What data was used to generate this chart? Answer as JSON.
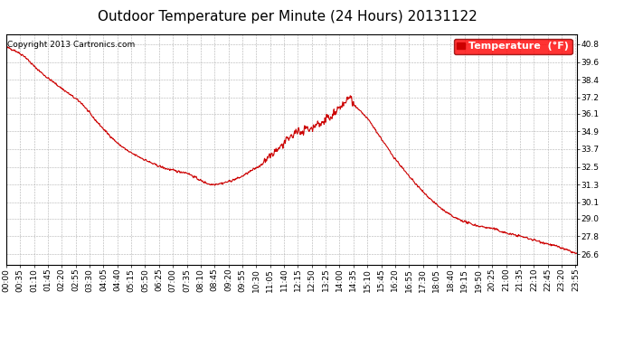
{
  "title": "Outdoor Temperature per Minute (24 Hours) 20131122",
  "copyright_text": "Copyright 2013 Cartronics.com",
  "legend_label": "Temperature  (°F)",
  "line_color": "#cc0000",
  "background_color": "#ffffff",
  "plot_bg_color": "#ffffff",
  "grid_color": "#b0b0b0",
  "ylim": [
    25.9,
    41.5
  ],
  "yticks": [
    26.6,
    27.8,
    29.0,
    30.1,
    31.3,
    32.5,
    33.7,
    34.9,
    36.1,
    37.2,
    38.4,
    39.6,
    40.8
  ],
  "title_fontsize": 11,
  "tick_fontsize": 6.5,
  "legend_fontsize": 8,
  "copyright_fontsize": 6.5,
  "line_width": 0.8,
  "control_points": [
    [
      0,
      40.6
    ],
    [
      20,
      40.4
    ],
    [
      45,
      40.0
    ],
    [
      70,
      39.3
    ],
    [
      100,
      38.6
    ],
    [
      130,
      38.0
    ],
    [
      160,
      37.4
    ],
    [
      190,
      36.8
    ],
    [
      220,
      35.8
    ],
    [
      250,
      34.9
    ],
    [
      280,
      34.1
    ],
    [
      310,
      33.5
    ],
    [
      340,
      33.1
    ],
    [
      370,
      32.7
    ],
    [
      400,
      32.4
    ],
    [
      430,
      32.2
    ],
    [
      455,
      32.1
    ],
    [
      475,
      31.8
    ],
    [
      495,
      31.5
    ],
    [
      510,
      31.35
    ],
    [
      515,
      31.3
    ],
    [
      530,
      31.35
    ],
    [
      545,
      31.4
    ],
    [
      565,
      31.55
    ],
    [
      590,
      31.8
    ],
    [
      615,
      32.2
    ],
    [
      640,
      32.6
    ],
    [
      660,
      33.1
    ],
    [
      680,
      33.6
    ],
    [
      700,
      34.1
    ],
    [
      715,
      34.5
    ],
    [
      730,
      34.85
    ],
    [
      745,
      34.9
    ],
    [
      755,
      35.2
    ],
    [
      763,
      34.95
    ],
    [
      770,
      35.1
    ],
    [
      778,
      35.3
    ],
    [
      785,
      35.55
    ],
    [
      790,
      35.3
    ],
    [
      796,
      35.5
    ],
    [
      803,
      35.75
    ],
    [
      810,
      35.95
    ],
    [
      817,
      35.7
    ],
    [
      823,
      36.0
    ],
    [
      830,
      36.2
    ],
    [
      838,
      36.45
    ],
    [
      845,
      36.6
    ],
    [
      852,
      36.8
    ],
    [
      858,
      36.9
    ],
    [
      863,
      37.15
    ],
    [
      867,
      37.2
    ],
    [
      871,
      36.95
    ],
    [
      878,
      36.6
    ],
    [
      888,
      36.35
    ],
    [
      900,
      36.05
    ],
    [
      915,
      35.6
    ],
    [
      930,
      35.0
    ],
    [
      950,
      34.2
    ],
    [
      970,
      33.4
    ],
    [
      990,
      32.7
    ],
    [
      1010,
      32.0
    ],
    [
      1030,
      31.4
    ],
    [
      1050,
      30.8
    ],
    [
      1070,
      30.3
    ],
    [
      1090,
      29.8
    ],
    [
      1110,
      29.4
    ],
    [
      1130,
      29.05
    ],
    [
      1150,
      28.85
    ],
    [
      1170,
      28.65
    ],
    [
      1190,
      28.5
    ],
    [
      1210,
      28.4
    ],
    [
      1230,
      28.3
    ],
    [
      1250,
      28.1
    ],
    [
      1270,
      27.95
    ],
    [
      1290,
      27.85
    ],
    [
      1310,
      27.7
    ],
    [
      1330,
      27.55
    ],
    [
      1350,
      27.4
    ],
    [
      1370,
      27.25
    ],
    [
      1390,
      27.1
    ],
    [
      1410,
      26.9
    ],
    [
      1425,
      26.75
    ],
    [
      1439,
      26.6
    ]
  ]
}
